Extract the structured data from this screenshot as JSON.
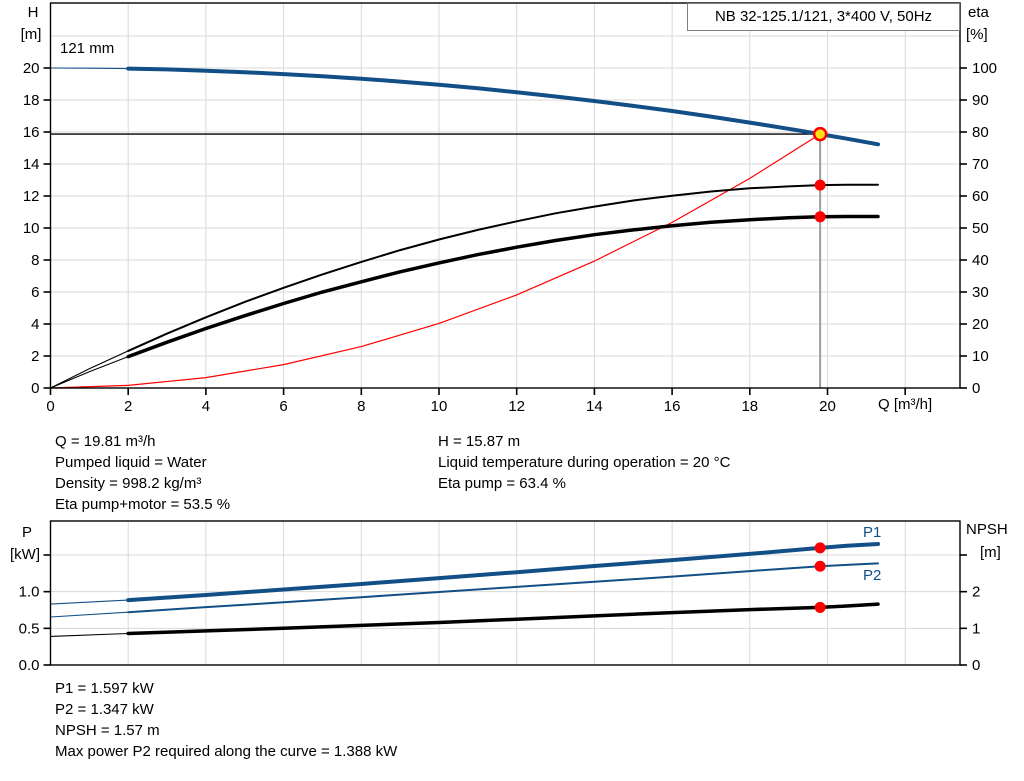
{
  "colors": {
    "curve_blue": "#134f87",
    "red": "#ff0000",
    "duty_yellow": "#ffe01a",
    "grid_gray": "#d9d9d9",
    "axis_black": "#000000",
    "duty_vertical_gray": "#9e9e9e"
  },
  "chart_data": [
    {
      "type": "line",
      "title": "NB 32-125.1/121, 3*400 V, 50Hz",
      "impeller_label": "121 mm",
      "x_axis": {
        "label": "Q [m³/h]",
        "min": 0,
        "max": 23.4,
        "ticks": [
          {
            "v": 0,
            "t": "0"
          },
          {
            "v": 2,
            "t": "2"
          },
          {
            "v": 4,
            "t": "4"
          },
          {
            "v": 6,
            "t": "6"
          },
          {
            "v": 8,
            "t": "8"
          },
          {
            "v": 10,
            "t": "10"
          },
          {
            "v": 12,
            "t": "12"
          },
          {
            "v": 14,
            "t": "14"
          },
          {
            "v": 16,
            "t": "16"
          },
          {
            "v": 18,
            "t": "18"
          },
          {
            "v": 20,
            "t": "20"
          },
          {
            "v": 22,
            "t": ""
          }
        ],
        "grid": [
          2,
          4,
          6,
          8,
          10,
          12,
          14,
          16,
          18,
          20,
          22
        ]
      },
      "left_axis": {
        "name": "H",
        "unit": "[m]",
        "min": 0,
        "max": 24,
        "ticks": [
          {
            "v": 0,
            "t": "0"
          },
          {
            "v": 2,
            "t": "2"
          },
          {
            "v": 4,
            "t": "4"
          },
          {
            "v": 6,
            "t": "6"
          },
          {
            "v": 8,
            "t": "8"
          },
          {
            "v": 10,
            "t": "10"
          },
          {
            "v": 12,
            "t": "12"
          },
          {
            "v": 14,
            "t": "14"
          },
          {
            "v": 16,
            "t": "16"
          },
          {
            "v": 18,
            "t": "18"
          },
          {
            "v": 20,
            "t": "20"
          }
        ],
        "grid": [
          2,
          4,
          6,
          8,
          10,
          12,
          14,
          16,
          18,
          20,
          22
        ]
      },
      "right_axis": {
        "name": "eta",
        "unit": "[%]",
        "min": 0,
        "max": 120,
        "ticks": [
          {
            "v": 0,
            "t": "0"
          },
          {
            "v": 10,
            "t": "10"
          },
          {
            "v": 20,
            "t": "20"
          },
          {
            "v": 30,
            "t": "30"
          },
          {
            "v": 40,
            "t": "40"
          },
          {
            "v": 50,
            "t": "50"
          },
          {
            "v": 60,
            "t": "60"
          },
          {
            "v": 70,
            "t": "70"
          },
          {
            "v": 80,
            "t": "80"
          },
          {
            "v": 90,
            "t": "90"
          },
          {
            "v": 100,
            "t": "100"
          }
        ]
      },
      "series": [
        {
          "name": "system-curve",
          "axis": "H",
          "color": "#ff0000",
          "width": 1.2,
          "points": [
            [
              0,
              0
            ],
            [
              2,
              0.16
            ],
            [
              4,
              0.65
            ],
            [
              6,
              1.46
            ],
            [
              8,
              2.59
            ],
            [
              10,
              4.04
            ],
            [
              12,
              5.82
            ],
            [
              14,
              7.93
            ],
            [
              16,
              10.35
            ],
            [
              18,
              13.1
            ],
            [
              19.81,
              15.87
            ]
          ]
        },
        {
          "name": "head-curve",
          "axis": "H",
          "color": "#134f87",
          "width": 4,
          "thin_until": 2,
          "points": [
            [
              0,
              20.0
            ],
            [
              1,
              19.99
            ],
            [
              2,
              19.96
            ],
            [
              3,
              19.91
            ],
            [
              4,
              19.83
            ],
            [
              5,
              19.74
            ],
            [
              6,
              19.62
            ],
            [
              7,
              19.48
            ],
            [
              8,
              19.33
            ],
            [
              9,
              19.15
            ],
            [
              10,
              18.95
            ],
            [
              11,
              18.73
            ],
            [
              12,
              18.48
            ],
            [
              13,
              18.22
            ],
            [
              14,
              17.94
            ],
            [
              15,
              17.63
            ],
            [
              16,
              17.31
            ],
            [
              17,
              16.96
            ],
            [
              18,
              16.59
            ],
            [
              19,
              16.2
            ],
            [
              19.81,
              15.87
            ],
            [
              20.5,
              15.58
            ],
            [
              21.3,
              15.23
            ]
          ]
        },
        {
          "name": "eta-pump-curve",
          "axis": "eta",
          "color": "#000000",
          "width": 2,
          "thin_until": 2,
          "points": [
            [
              0,
              0
            ],
            [
              1,
              6.0
            ],
            [
              2,
              11.6
            ],
            [
              3,
              17.0
            ],
            [
              4,
              22.1
            ],
            [
              5,
              26.9
            ],
            [
              6,
              31.3
            ],
            [
              7,
              35.5
            ],
            [
              8,
              39.4
            ],
            [
              9,
              43.1
            ],
            [
              10,
              46.4
            ],
            [
              11,
              49.4
            ],
            [
              12,
              52.1
            ],
            [
              13,
              54.6
            ],
            [
              14,
              56.7
            ],
            [
              15,
              58.6
            ],
            [
              16,
              60.1
            ],
            [
              17,
              61.4
            ],
            [
              18,
              62.4
            ],
            [
              19,
              63.0
            ],
            [
              19.81,
              63.4
            ],
            [
              20.5,
              63.5
            ],
            [
              21.3,
              63.5
            ]
          ]
        },
        {
          "name": "eta-pump-motor-curve",
          "axis": "eta",
          "color": "#000000",
          "width": 3.5,
          "thin_until": 2,
          "points": [
            [
              0,
              0
            ],
            [
              1,
              5.1
            ],
            [
              2,
              9.8
            ],
            [
              3,
              14.3
            ],
            [
              4,
              18.6
            ],
            [
              5,
              22.6
            ],
            [
              6,
              26.4
            ],
            [
              7,
              30.0
            ],
            [
              8,
              33.2
            ],
            [
              9,
              36.3
            ],
            [
              10,
              39.1
            ],
            [
              11,
              41.7
            ],
            [
              12,
              44.0
            ],
            [
              13,
              46.1
            ],
            [
              14,
              47.9
            ],
            [
              15,
              49.4
            ],
            [
              16,
              50.7
            ],
            [
              17,
              51.8
            ],
            [
              18,
              52.6
            ],
            [
              19,
              53.2
            ],
            [
              19.81,
              53.5
            ],
            [
              20.5,
              53.6
            ],
            [
              21.3,
              53.6
            ]
          ]
        }
      ],
      "duty_point": {
        "q": 19.81,
        "h": 15.87
      },
      "duty_dots": [
        {
          "axis": "eta",
          "q": 19.81,
          "v": 63.4
        },
        {
          "axis": "eta",
          "q": 19.81,
          "v": 53.5
        }
      ]
    },
    {
      "type": "line",
      "x_axis": {
        "min": 0,
        "max": 23.4,
        "ticks": [],
        "grid": [
          2,
          4,
          6,
          8,
          10,
          12,
          14,
          16,
          18,
          20,
          22
        ]
      },
      "left_axis": {
        "name": "P",
        "unit": "[kW]",
        "min": 0,
        "max": 1.96,
        "ticks": [
          {
            "v": 0,
            "t": "0.0"
          },
          {
            "v": 0.5,
            "t": "0.5"
          },
          {
            "v": 1,
            "t": "1.0"
          },
          {
            "v": 1.5,
            "t": ""
          }
        ],
        "grid": [
          0.5,
          1,
          1.5
        ]
      },
      "right_axis": {
        "name": "NPSH",
        "unit": "[m]",
        "min": 0,
        "max": 3.93,
        "ticks": [
          {
            "v": 0,
            "t": "0"
          },
          {
            "v": 1,
            "t": "1"
          },
          {
            "v": 2,
            "t": "2"
          },
          {
            "v": 3,
            "t": ""
          }
        ]
      },
      "series": [
        {
          "name": "p1-curve",
          "axis": "P",
          "color": "#134f87",
          "width": 4,
          "thin_until": 2,
          "label": "P1",
          "points": [
            [
              0,
              0.83
            ],
            [
              2,
              0.885
            ],
            [
              4,
              0.955
            ],
            [
              6,
              1.03
            ],
            [
              8,
              1.105
            ],
            [
              10,
              1.185
            ],
            [
              12,
              1.265
            ],
            [
              14,
              1.35
            ],
            [
              16,
              1.43
            ],
            [
              18,
              1.515
            ],
            [
              19.81,
              1.597
            ],
            [
              20.5,
              1.625
            ],
            [
              21.3,
              1.65
            ]
          ]
        },
        {
          "name": "p2-curve",
          "axis": "P",
          "color": "#134f87",
          "width": 2,
          "thin_until": 2,
          "label": "P2",
          "points": [
            [
              0,
              0.655
            ],
            [
              2,
              0.72
            ],
            [
              4,
              0.79
            ],
            [
              6,
              0.855
            ],
            [
              8,
              0.925
            ],
            [
              10,
              0.995
            ],
            [
              12,
              1.065
            ],
            [
              14,
              1.135
            ],
            [
              16,
              1.205
            ],
            [
              18,
              1.28
            ],
            [
              19.81,
              1.347
            ],
            [
              20.5,
              1.365
            ],
            [
              21.3,
              1.385
            ]
          ]
        },
        {
          "name": "npsh-curve",
          "axis": "NPSH",
          "color": "#000000",
          "width": 3.5,
          "thin_until": 2,
          "points": [
            [
              0,
              0.78
            ],
            [
              2,
              0.86
            ],
            [
              4,
              0.93
            ],
            [
              6,
              1.0
            ],
            [
              8,
              1.08
            ],
            [
              10,
              1.16
            ],
            [
              12,
              1.25
            ],
            [
              14,
              1.34
            ],
            [
              16,
              1.43
            ],
            [
              18,
              1.51
            ],
            [
              19.81,
              1.57
            ],
            [
              20.5,
              1.61
            ],
            [
              21.3,
              1.66
            ]
          ]
        }
      ],
      "duty_dots": [
        {
          "axis": "P",
          "q": 19.81,
          "v": 1.597
        },
        {
          "axis": "P",
          "q": 19.81,
          "v": 1.347
        },
        {
          "axis": "NPSH",
          "q": 19.81,
          "v": 1.57
        }
      ]
    }
  ],
  "labels": {
    "h_name": "H",
    "h_unit": "[m]",
    "eta_name": "eta",
    "eta_unit": "[%]",
    "q_label": "Q [m³/h]",
    "p_name": "P",
    "p_unit": "[kW]",
    "npsh_name": "NPSH",
    "npsh_unit": "[m]",
    "p1": "P1",
    "p2": "P2"
  },
  "info1": {
    "left": [
      "Q = 19.81 m³/h",
      "Pumped liquid = Water",
      "Density = 998.2 kg/m³",
      "Eta pump+motor = 53.5 %"
    ],
    "right": [
      "H = 15.87 m",
      "Liquid temperature during operation = 20 °C",
      "Eta pump = 63.4 %"
    ]
  },
  "info2": {
    "lines": [
      "P1 = 1.597 kW",
      "P2 = 1.347 kW",
      "NPSH = 1.57 m",
      "Max power P2 required along the curve = 1.388 kW"
    ]
  }
}
